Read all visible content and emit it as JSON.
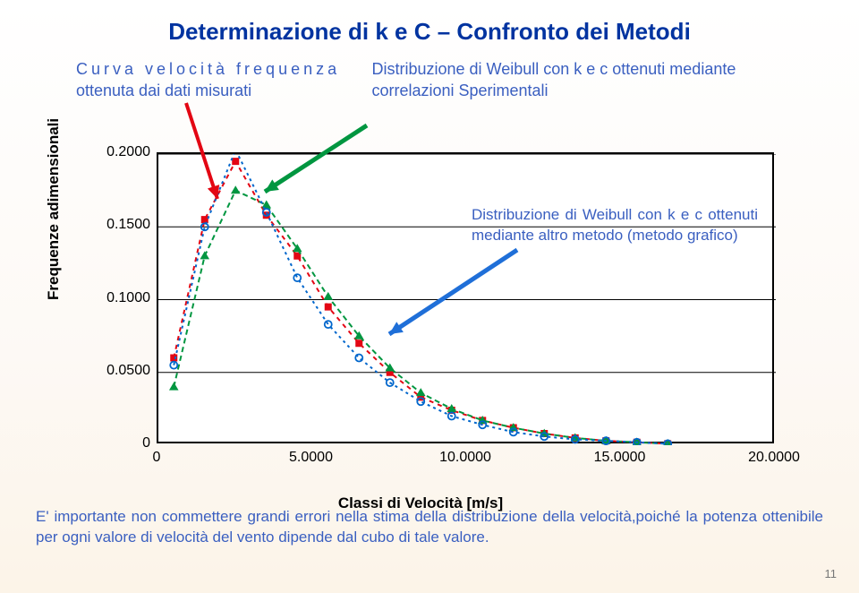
{
  "title": "Determinazione di k e C – Confronto dei Metodi",
  "subtitle_left_line1": "Curva velocità frequenza",
  "subtitle_left_line2": "ottenuta dai dati misurati",
  "subtitle_right_line1": "Distribuzione di Weibull con k e c ottenuti mediante",
  "subtitle_right_line2": "correlazioni Sperimentali",
  "inner_annotation": "Distribuzione di Weibull con k e c ottenuti mediante altro metodo (metodo grafico)",
  "footer_text": "E' importante non commettere grandi errori nella stima della distribuzione della velocità,poiché la potenza ottenibile per ogni valore di velocità del vento dipende dal cubo di tale valore.",
  "page_number": "11",
  "chart": {
    "type": "line",
    "xlim": [
      0,
      20
    ],
    "ylim": [
      0,
      0.2
    ],
    "yticks": [
      0,
      0.05,
      0.1,
      0.15,
      0.2
    ],
    "ytick_labels": [
      "0",
      "0.0500",
      "0.1000",
      "0.1500",
      "0.2000"
    ],
    "xticks": [
      0,
      5,
      10,
      15,
      20
    ],
    "xtick_labels": [
      "0",
      "5.0000",
      "10.0000",
      "15.0000",
      "20.0000"
    ],
    "ylabel": "Frequenze  adimensionali",
    "xlabel": "Classi di Velocità [m/s]",
    "background_color": "#ffffff",
    "border_color": "#000000",
    "series": [
      {
        "name": "measured",
        "color": "#e30613",
        "marker": "square",
        "marker_size": 8,
        "dash": "5,5",
        "x": [
          0.5,
          1.5,
          2.5,
          3.5,
          4.5,
          5.5,
          6.5,
          7.5,
          8.5,
          9.5,
          10.5,
          11.5,
          12.5,
          13.5,
          14.5,
          15.5,
          16.5
        ],
        "y": [
          0.06,
          0.155,
          0.195,
          0.158,
          0.13,
          0.095,
          0.07,
          0.05,
          0.033,
          0.024,
          0.017,
          0.012,
          0.008,
          0.005,
          0.003,
          0.002,
          0.001
        ]
      },
      {
        "name": "weibull_exp",
        "color": "#009640",
        "marker": "triangle",
        "marker_size": 9,
        "dash": "6,4",
        "x": [
          0.5,
          1.5,
          2.5,
          3.5,
          4.5,
          5.5,
          6.5,
          7.5,
          8.5,
          9.5,
          10.5,
          11.5,
          12.5,
          13.5,
          14.5,
          15.5,
          16.5
        ],
        "y": [
          0.04,
          0.13,
          0.175,
          0.165,
          0.135,
          0.102,
          0.075,
          0.053,
          0.036,
          0.025,
          0.017,
          0.012,
          0.008,
          0.005,
          0.003,
          0.002,
          0.001
        ]
      },
      {
        "name": "weibull_graphic",
        "color": "#0066cc",
        "marker": "circle",
        "marker_size": 8,
        "dash": "3,4",
        "x": [
          0.5,
          1.5,
          2.5,
          3.5,
          4.5,
          5.5,
          6.5,
          7.5,
          8.5,
          9.5,
          10.5,
          11.5,
          12.5,
          13.5,
          14.5,
          15.5,
          16.5
        ],
        "y": [
          0.055,
          0.15,
          0.203,
          0.16,
          0.115,
          0.083,
          0.06,
          0.043,
          0.03,
          0.02,
          0.014,
          0.009,
          0.006,
          0.004,
          0.003,
          0.002,
          0.001
        ]
      }
    ],
    "arrows": [
      {
        "name": "red-arrow",
        "color": "#e30613",
        "from": [
          208,
          115
        ],
        "to": [
          243,
          222
        ],
        "width": 4
      },
      {
        "name": "green-arrow",
        "color": "#009640",
        "from": [
          410,
          140
        ],
        "to": [
          296,
          214
        ],
        "width": 5
      },
      {
        "name": "blue-arrow",
        "color": "#1f6fd8",
        "from": [
          578,
          279
        ],
        "to": [
          435,
          373
        ],
        "width": 5
      }
    ]
  }
}
